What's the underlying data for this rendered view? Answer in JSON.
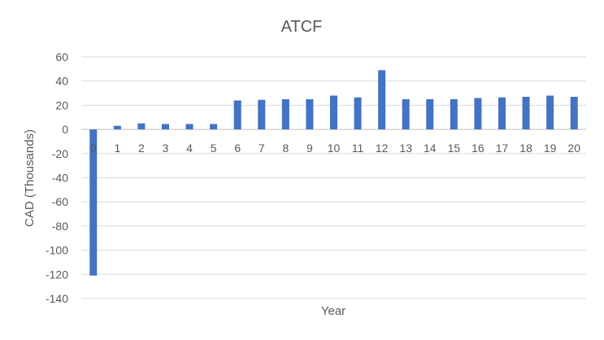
{
  "chart_data": {
    "type": "bar",
    "title": "ATCF",
    "xlabel": "Year",
    "ylabel": "CAD (Thousands)",
    "ylim": [
      -140,
      60
    ],
    "yticks": [
      60,
      40,
      20,
      0,
      -20,
      -40,
      -60,
      -80,
      -100,
      -120,
      -140
    ],
    "grid": true,
    "legend": "none",
    "bar_color": "#4472C4",
    "categories": [
      "0",
      "1",
      "2",
      "3",
      "4",
      "5",
      "6",
      "7",
      "8",
      "9",
      "10",
      "11",
      "12",
      "13",
      "14",
      "15",
      "16",
      "17",
      "18",
      "19",
      "20"
    ],
    "values": [
      -121,
      3,
      5,
      4.5,
      4.5,
      4.5,
      24,
      24.5,
      25,
      25,
      28,
      26.5,
      49,
      25,
      25,
      25,
      26,
      26.5,
      27,
      28,
      27
    ]
  }
}
